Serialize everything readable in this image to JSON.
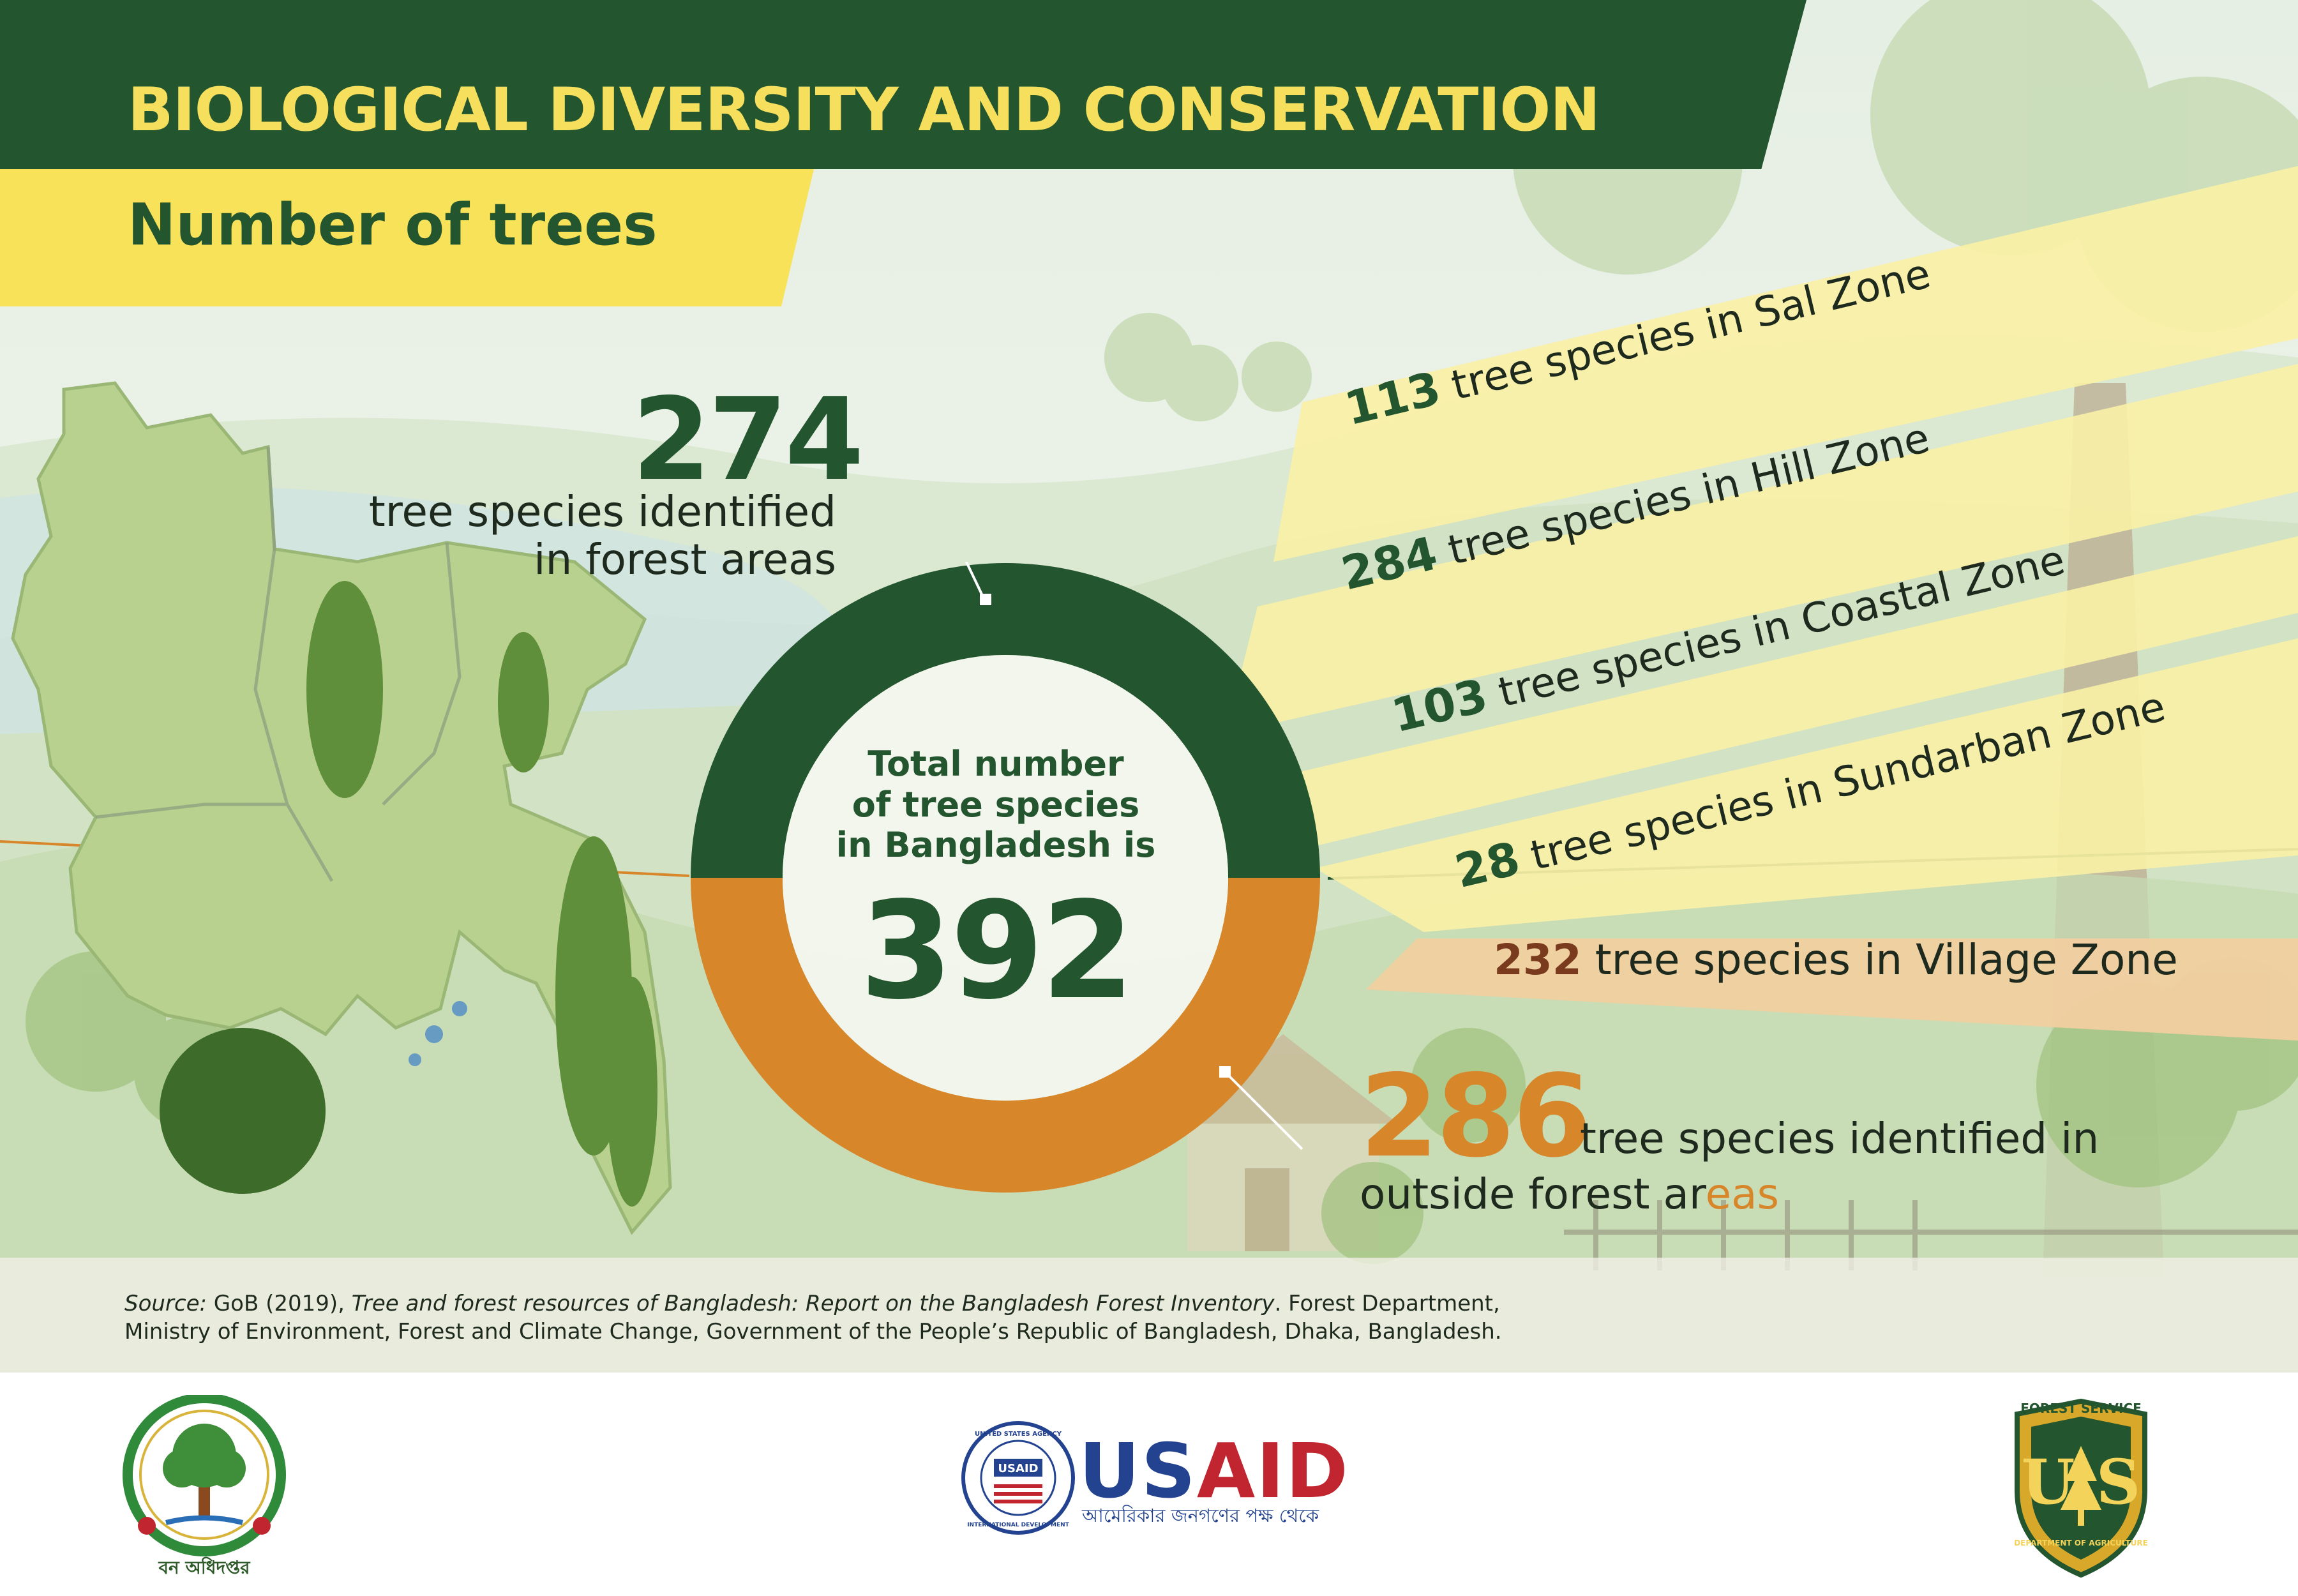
{
  "header": {
    "title": "BIOLOGICAL DIVERSITY AND CONSERVATION",
    "subtitle": "Number of trees"
  },
  "forest": {
    "count": "274",
    "label_line1": "tree species identified",
    "label_line2": "in forest areas"
  },
  "total": {
    "line1": "Total number",
    "line2": "of tree species",
    "line3": "in Bangladesh is",
    "count": "392"
  },
  "zones": [
    {
      "count": "113",
      "label": "tree species in Sal Zone"
    },
    {
      "count": "284",
      "label": "tree species in Hill Zone"
    },
    {
      "count": "103",
      "label": "tree species in Coastal Zone"
    },
    {
      "count": "28",
      "label": "tree species in Sundarban Zone"
    }
  ],
  "village": {
    "count": "232",
    "label": "tree species in Village Zone"
  },
  "outside": {
    "count": "286",
    "label_line1": "tree species identified in",
    "label_line2_a": "outside forest ar",
    "label_line2_b": "eas"
  },
  "source": {
    "prefix": "Source:",
    "part1": " GoB (2019), ",
    "italic": "Tree and forest resources of Bangladesh: Report on the Bangladesh Forest Inventory",
    "part2": ". Forest Department,",
    "line2": "Ministry of Environment, Forest and Climate Change, Government of the People’s Republic of Bangladesh, Dhaka, Bangladesh."
  },
  "logos": {
    "forest_dept_caption": "বন অধিদপ্তর",
    "usaid_word_a": "US",
    "usaid_word_b": "AID",
    "usaid_tagline": "আমেরিকার জনগণের পক্ষ থেকে",
    "usaid_seal_top": "UNITED STATES AGENCY",
    "usaid_seal_bottom": "INTERNATIONAL DEVELOPMENT",
    "usaid_seal_inner": "USAID",
    "usfs_top": "FOREST SERVICE",
    "usfs_bottom": "DEPARTMENT OF AGRICULTURE",
    "usfs_letters": "U S"
  },
  "colors": {
    "dark_green": "#23552f",
    "yellow": "#f7e25a",
    "orange": "#d8862a",
    "brown": "#7a3a1e",
    "usaid_blue": "#23428f",
    "usaid_red": "#c1252f"
  }
}
